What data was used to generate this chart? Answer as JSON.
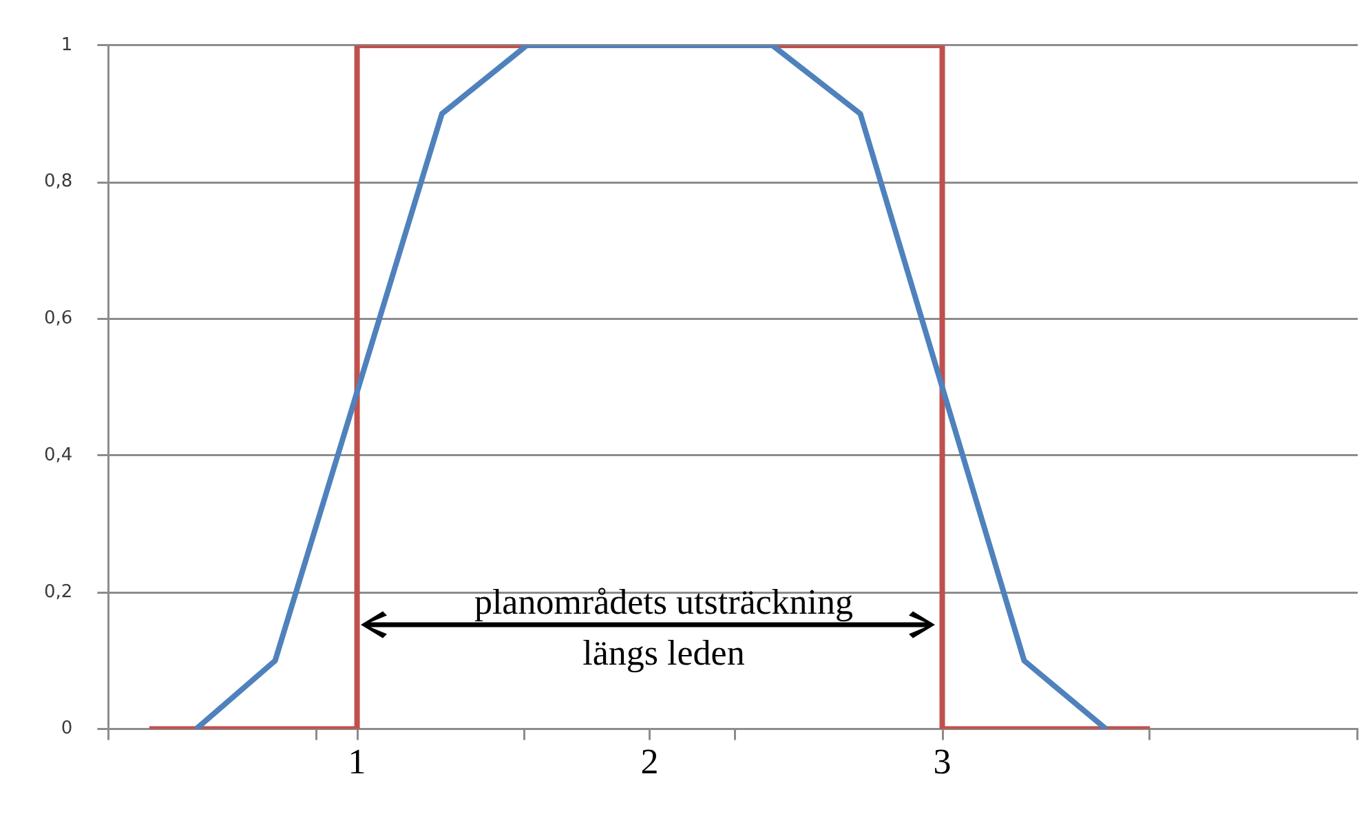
{
  "chart_data": {
    "type": "line",
    "marker": "none",
    "grid": "y",
    "legend": false,
    "xlim": [
      0.15,
      4.42
    ],
    "xticks": [
      {
        "value": 0.15,
        "label": null
      },
      {
        "value": 0.86,
        "label": null
      },
      1,
      {
        "value": 1.57,
        "label": null
      },
      2,
      {
        "value": 2.29,
        "label": null
      },
      3,
      {
        "value": 3.71,
        "label": null
      },
      {
        "value": 4.42,
        "label": null
      }
    ],
    "ylim": [
      0,
      1
    ],
    "yticks": [
      {
        "value": 0,
        "label": "0"
      },
      {
        "value": 0.2,
        "label": "0,2"
      },
      {
        "value": 0.4,
        "label": "0,4"
      },
      {
        "value": 0.6,
        "label": "0,6"
      },
      {
        "value": 0.8,
        "label": "0,8"
      },
      {
        "value": 1,
        "label": "1"
      }
    ],
    "series": [
      {
        "color": "#4f81bd",
        "x": [
          0.45,
          0.72,
          1.29,
          1.58,
          2.42,
          2.72,
          3.28,
          3.56
        ],
        "values": [
          0,
          0.1,
          0.9,
          1,
          1,
          0.9,
          0.1,
          0
        ]
      },
      {
        "color": "#c0504d",
        "x": [
          0.29,
          1,
          1,
          3,
          3,
          3.71
        ],
        "values": [
          0,
          0,
          1,
          1,
          0,
          0
        ]
      }
    ],
    "annotations": [
      "planområdets utsträckning\nlängs leden"
    ]
  }
}
